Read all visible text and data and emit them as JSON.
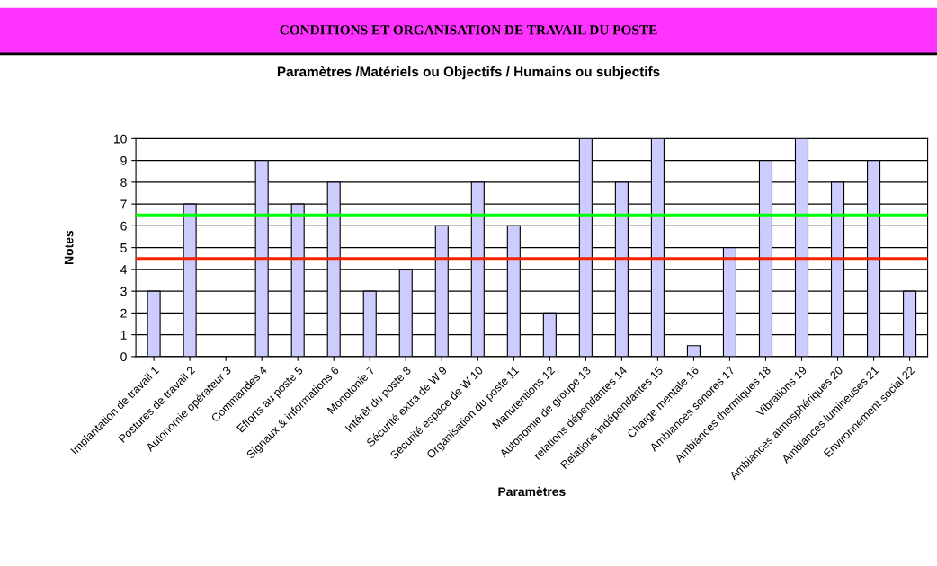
{
  "chart_data": {
    "type": "bar",
    "title": "CONDITIONS ET ORGANISATION DE TRAVAIL DU POSTE",
    "subtitle": "Paramètres /Matériels ou Objectifs / Humains ou subjectifs",
    "xlabel": "Paramètres",
    "ylabel": "Notes",
    "categories": [
      "Implantation de travail 1",
      "Postures de travail 2",
      "Autonomie opérateur 3",
      "Commandes 4",
      "Efforts au poste 5",
      "Signaux & informations 6",
      "Monotonie 7",
      "Intérêt du poste 8",
      "Sécurité extra de W 9",
      "Sécurité espace de W 10",
      "Organisation du poste 11",
      "Manutentions 12",
      "Autonomie de groupe 13",
      "relations dépendantes 14",
      "Relations indépendantes 15",
      "Charge mentale 16",
      "Ambiances sonores 17",
      "Ambiances thermiques 18",
      "Vibrations 19",
      "Ambiances atmosphériques 20",
      "Ambiances lumineuses 21",
      "Environnement social 22"
    ],
    "values": [
      3,
      7,
      null,
      9,
      7,
      8,
      3,
      4,
      6,
      8,
      6,
      2,
      10,
      8,
      10,
      0.5,
      5,
      9,
      10,
      8,
      9,
      3
    ],
    "color": "#ccccff",
    "ylim": [
      0,
      10
    ],
    "yticks": [
      0,
      1,
      2,
      3,
      4,
      5,
      6,
      7,
      8,
      9,
      10
    ],
    "grid": "y",
    "ref_lines": [
      {
        "axis": "y",
        "value": 6.5,
        "color": "#00ff00"
      },
      {
        "axis": "y",
        "value": 4.5,
        "color": "#ff2200"
      }
    ]
  }
}
